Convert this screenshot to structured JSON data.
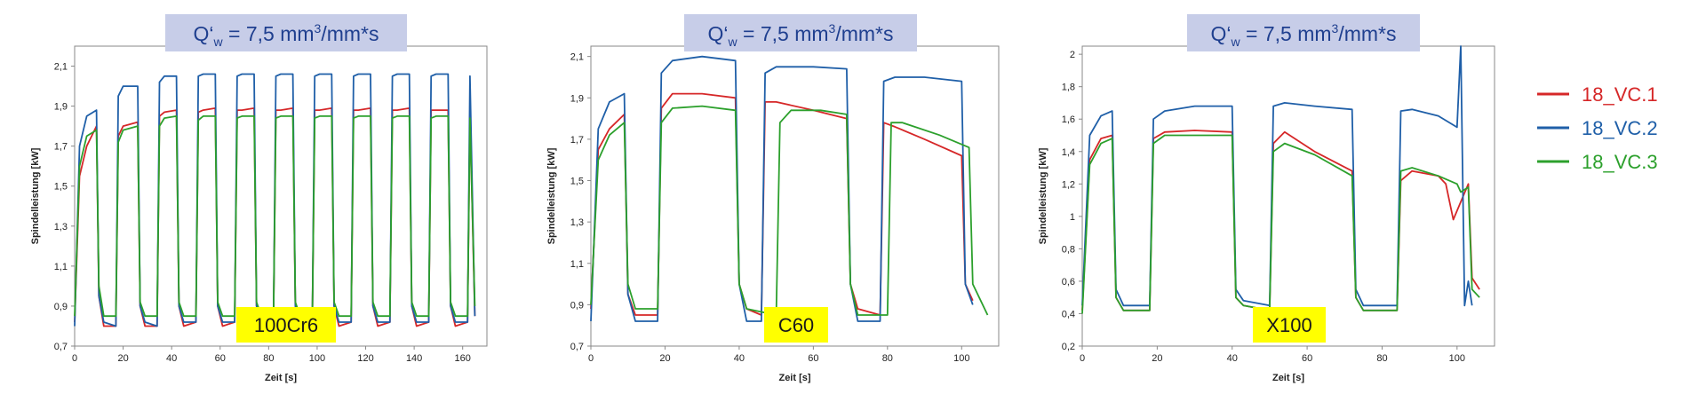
{
  "chart_data": [
    {
      "type": "line",
      "title": {
        "prefix": "Q‘",
        "sub": "w",
        "mid": " = 7,5 mm",
        "sup": "3",
        "suffix": "/mm*s"
      },
      "material": "100Cr6",
      "xlabel": "Zeit [s]",
      "ylabel": "Spindelleistung [kW]",
      "xlim": [
        0,
        170
      ],
      "ylim": [
        0.7,
        2.2
      ],
      "xticks": [
        "0",
        "20",
        "40",
        "60",
        "80",
        "100",
        "120",
        "140",
        "160"
      ],
      "yticks": [
        "0,7",
        "0,9",
        "1,1",
        "1,3",
        "1,5",
        "1,7",
        "1,9",
        "2,1"
      ],
      "series": [
        {
          "name": "18_VC.1",
          "x": [
            0,
            2,
            5,
            9,
            10,
            12,
            17,
            18,
            20,
            26,
            27,
            29,
            34,
            35,
            37,
            42,
            43,
            45,
            50,
            51,
            53,
            58,
            59,
            61,
            66,
            67,
            69,
            74,
            75,
            77,
            82,
            83,
            85,
            90,
            91,
            93,
            98,
            99,
            101,
            106,
            107,
            109,
            114,
            115,
            117,
            122,
            123,
            125,
            130,
            131,
            133,
            138,
            139,
            141,
            146,
            147,
            149,
            154,
            155,
            157,
            162,
            163,
            165
          ],
          "y": [
            0.82,
            1.55,
            1.7,
            1.8,
            0.95,
            0.8,
            0.8,
            1.75,
            1.8,
            1.82,
            0.9,
            0.8,
            0.8,
            1.85,
            1.87,
            1.88,
            0.9,
            0.8,
            0.82,
            1.87,
            1.88,
            1.89,
            0.9,
            0.8,
            0.82,
            1.88,
            1.88,
            1.89,
            0.9,
            0.8,
            0.82,
            1.88,
            1.88,
            1.89,
            0.9,
            0.8,
            0.82,
            1.88,
            1.88,
            1.89,
            0.9,
            0.8,
            0.82,
            1.88,
            1.88,
            1.89,
            0.9,
            0.8,
            0.82,
            1.88,
            1.88,
            1.89,
            0.9,
            0.8,
            0.82,
            1.88,
            1.88,
            1.88,
            0.9,
            0.8,
            0.82,
            1.87,
            0.85
          ]
        },
        {
          "name": "18_VC.2",
          "x": [
            0,
            2,
            5,
            9,
            10,
            12,
            17,
            18,
            20,
            26,
            27,
            29,
            34,
            35,
            37,
            42,
            43,
            45,
            50,
            51,
            53,
            58,
            59,
            61,
            66,
            67,
            69,
            74,
            75,
            77,
            82,
            83,
            85,
            90,
            91,
            93,
            98,
            99,
            101,
            106,
            107,
            109,
            114,
            115,
            117,
            122,
            123,
            125,
            130,
            131,
            133,
            138,
            139,
            141,
            146,
            147,
            149,
            154,
            155,
            157,
            162,
            163,
            165
          ],
          "y": [
            0.8,
            1.7,
            1.85,
            1.88,
            0.95,
            0.82,
            0.8,
            1.95,
            2.0,
            2.0,
            0.9,
            0.82,
            0.8,
            2.02,
            2.05,
            2.05,
            0.9,
            0.82,
            0.82,
            2.05,
            2.06,
            2.06,
            0.9,
            0.82,
            0.82,
            2.05,
            2.06,
            2.06,
            0.9,
            0.82,
            0.82,
            2.05,
            2.06,
            2.06,
            0.9,
            0.82,
            0.82,
            2.05,
            2.06,
            2.06,
            0.9,
            0.82,
            0.82,
            2.05,
            2.06,
            2.06,
            0.9,
            0.82,
            0.82,
            2.05,
            2.06,
            2.06,
            0.9,
            0.82,
            0.82,
            2.05,
            2.06,
            2.06,
            0.9,
            0.82,
            0.82,
            2.05,
            0.85
          ]
        },
        {
          "name": "18_VC.3",
          "x": [
            0,
            2,
            5,
            9,
            10,
            12,
            17,
            18,
            20,
            26,
            27,
            29,
            34,
            35,
            37,
            42,
            43,
            45,
            50,
            51,
            53,
            58,
            59,
            61,
            66,
            67,
            69,
            74,
            75,
            77,
            82,
            83,
            85,
            90,
            91,
            93,
            98,
            99,
            101,
            106,
            107,
            109,
            114,
            115,
            117,
            122,
            123,
            125,
            130,
            131,
            133,
            138,
            139,
            141,
            146,
            147,
            149,
            154,
            155,
            157,
            162,
            163,
            165
          ],
          "y": [
            0.85,
            1.6,
            1.75,
            1.78,
            1.0,
            0.85,
            0.85,
            1.72,
            1.78,
            1.8,
            0.92,
            0.85,
            0.85,
            1.8,
            1.84,
            1.85,
            0.92,
            0.85,
            0.85,
            1.83,
            1.85,
            1.85,
            0.92,
            0.85,
            0.85,
            1.84,
            1.85,
            1.85,
            0.92,
            0.85,
            0.85,
            1.84,
            1.85,
            1.85,
            0.92,
            0.85,
            0.85,
            1.84,
            1.85,
            1.85,
            0.92,
            0.85,
            0.85,
            1.84,
            1.85,
            1.85,
            0.92,
            0.85,
            0.85,
            1.84,
            1.85,
            1.85,
            0.92,
            0.85,
            0.85,
            1.84,
            1.85,
            1.85,
            0.92,
            0.85,
            0.85,
            1.84,
            0.9
          ]
        }
      ]
    },
    {
      "type": "line",
      "title": {
        "prefix": "Q‘",
        "sub": "w",
        "mid": " = 7,5 mm",
        "sup": "3",
        "suffix": "/mm*s"
      },
      "material": "C60",
      "xlabel": "Zeit [s]",
      "ylabel": "Spindelleistung [kW]",
      "xlim": [
        0,
        110
      ],
      "ylim": [
        0.7,
        2.15
      ],
      "xticks": [
        "0",
        "20",
        "40",
        "60",
        "80",
        "100"
      ],
      "yticks": [
        "0,7",
        "0,9",
        "1,1",
        "1,3",
        "1,5",
        "1,7",
        "1,9",
        "2,1"
      ],
      "series": [
        {
          "name": "18_VC.1",
          "x": [
            0,
            2,
            5,
            9,
            10,
            12,
            18,
            19,
            22,
            30,
            39,
            40,
            42,
            46,
            47,
            50,
            60,
            69,
            70,
            72,
            78,
            79,
            82,
            90,
            100,
            101,
            103
          ],
          "y": [
            0.88,
            1.65,
            1.75,
            1.82,
            0.95,
            0.85,
            0.85,
            1.85,
            1.92,
            1.92,
            1.9,
            1.0,
            0.88,
            0.85,
            1.88,
            1.88,
            1.84,
            1.8,
            1.0,
            0.88,
            0.85,
            1.78,
            1.76,
            1.7,
            1.62,
            1.0,
            0.92
          ]
        },
        {
          "name": "18_VC.2",
          "x": [
            0,
            2,
            5,
            9,
            10,
            12,
            18,
            19,
            22,
            30,
            39,
            40,
            42,
            46,
            47,
            50,
            60,
            69,
            70,
            72,
            78,
            79,
            82,
            90,
            100,
            101,
            103
          ],
          "y": [
            0.82,
            1.75,
            1.88,
            1.92,
            0.95,
            0.82,
            0.82,
            2.02,
            2.08,
            2.1,
            2.08,
            1.0,
            0.82,
            0.82,
            2.02,
            2.05,
            2.05,
            2.04,
            1.0,
            0.82,
            0.82,
            1.98,
            2.0,
            2.0,
            1.98,
            1.0,
            0.9
          ]
        },
        {
          "name": "18_VC.3",
          "x": [
            0,
            2,
            5,
            9,
            10,
            12,
            18,
            19,
            22,
            30,
            39,
            40,
            42,
            50,
            51,
            54,
            62,
            69,
            70,
            72,
            80,
            81,
            84,
            94,
            102,
            103,
            107
          ],
          "y": [
            0.9,
            1.6,
            1.72,
            1.78,
            1.0,
            0.88,
            0.88,
            1.78,
            1.85,
            1.86,
            1.84,
            1.0,
            0.88,
            0.85,
            1.78,
            1.84,
            1.84,
            1.82,
            1.0,
            0.85,
            0.85,
            1.78,
            1.78,
            1.72,
            1.66,
            1.0,
            0.85
          ]
        }
      ]
    },
    {
      "type": "line",
      "title": {
        "prefix": "Q‘",
        "sub": "w",
        "mid": " = 7,5 mm",
        "sup": "3",
        "suffix": "/mm*s"
      },
      "material": "X100",
      "xlabel": "Zeit [s]",
      "ylabel": "Spindelleistung [kW]",
      "xlim": [
        0,
        110
      ],
      "ylim": [
        0.2,
        2.05
      ],
      "xticks": [
        "0",
        "20",
        "40",
        "60",
        "80",
        "100"
      ],
      "yticks": [
        "0,2",
        "0,4",
        "0,6",
        "0,8",
        "1",
        "1,2",
        "1,4",
        "1,6",
        "1,8",
        "2"
      ],
      "series": [
        {
          "name": "18_VC.1",
          "x": [
            0,
            2,
            5,
            8,
            9,
            11,
            18,
            19,
            22,
            30,
            40,
            41,
            43,
            50,
            51,
            54,
            62,
            72,
            73,
            75,
            84,
            85,
            88,
            95,
            97,
            99,
            103,
            104,
            106
          ],
          "y": [
            0.42,
            1.35,
            1.48,
            1.5,
            0.5,
            0.42,
            0.42,
            1.48,
            1.52,
            1.53,
            1.52,
            0.5,
            0.45,
            0.42,
            1.45,
            1.52,
            1.4,
            1.28,
            0.5,
            0.42,
            0.42,
            1.22,
            1.28,
            1.25,
            1.2,
            0.98,
            1.2,
            0.62,
            0.55
          ]
        },
        {
          "name": "18_VC.2",
          "x": [
            0,
            2,
            5,
            8,
            9,
            11,
            18,
            19,
            22,
            30,
            40,
            41,
            43,
            50,
            51,
            54,
            62,
            72,
            73,
            75,
            84,
            85,
            88,
            95,
            100,
            101,
            102,
            103,
            104
          ],
          "y": [
            0.45,
            1.5,
            1.62,
            1.65,
            0.55,
            0.45,
            0.45,
            1.6,
            1.65,
            1.68,
            1.68,
            0.55,
            0.48,
            0.45,
            1.68,
            1.7,
            1.68,
            1.66,
            0.55,
            0.45,
            0.45,
            1.65,
            1.66,
            1.62,
            1.55,
            2.05,
            0.45,
            0.6,
            0.45
          ]
        },
        {
          "name": "18_VC.3",
          "x": [
            0,
            2,
            5,
            8,
            9,
            11,
            18,
            19,
            22,
            30,
            40,
            41,
            43,
            50,
            51,
            54,
            62,
            72,
            73,
            75,
            84,
            85,
            88,
            95,
            100,
            101,
            103,
            104,
            106
          ],
          "y": [
            0.4,
            1.32,
            1.45,
            1.48,
            0.5,
            0.42,
            0.42,
            1.45,
            1.5,
            1.5,
            1.5,
            0.5,
            0.45,
            0.42,
            1.4,
            1.45,
            1.38,
            1.25,
            0.5,
            0.42,
            0.42,
            1.28,
            1.3,
            1.25,
            1.2,
            1.15,
            1.18,
            0.55,
            0.5
          ]
        }
      ]
    }
  ],
  "legend": {
    "items": [
      {
        "label": "18_VC.1",
        "color": "#d62728"
      },
      {
        "label": "18_VC.2",
        "color": "#1f5fa8"
      },
      {
        "label": "18_VC.3",
        "color": "#2ca02c"
      }
    ]
  },
  "colors": {
    "series": [
      "#d62728",
      "#1f5fa8",
      "#2ca02c"
    ],
    "title_box": "#c7cde8",
    "title_text": "#1f3f8f",
    "material_box": "#ffff00",
    "axis": "#888888"
  }
}
